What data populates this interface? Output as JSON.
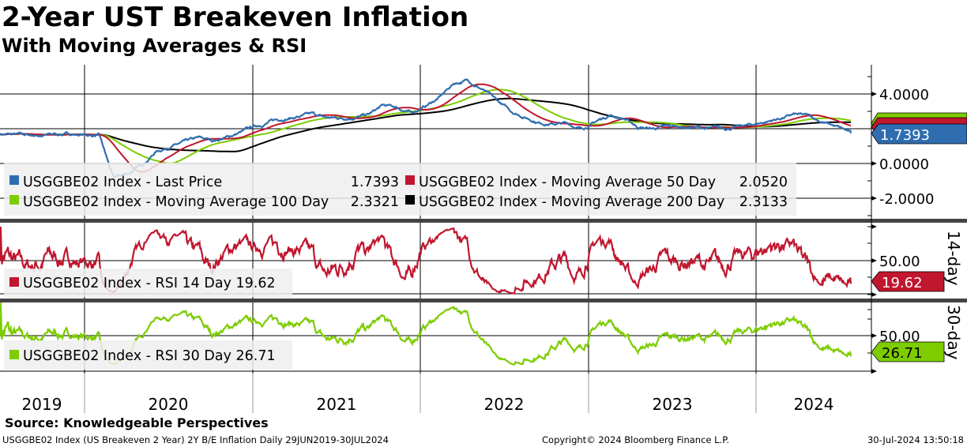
{
  "header": {
    "title": "2-Year UST Breakeven Inflation",
    "subtitle": "With Moving Averages & RSI"
  },
  "footer": {
    "source": "Source: Knowledgeable Perspectives",
    "description": "USGGBE02 Index (US Breakeven 2 Year) 2Y B/E Inflation  Daily 29JUN2019-30JUL2024",
    "copyright": "Copyright© 2024 Bloomberg Finance L.P.",
    "timestamp": "30-Jul-2024 13:50:18"
  },
  "chart_data": {
    "type": "line",
    "x_tick_labels": [
      "2019",
      "2020",
      "2021",
      "2022",
      "2023",
      "2024"
    ],
    "date_range": [
      "29JUN2019",
      "30JUL2024"
    ],
    "colors": {
      "last_price": "#2f6db0",
      "ma50": "#c0162e",
      "ma100": "#7dcc00",
      "ma200": "#000000",
      "rsi14": "#c0162e",
      "rsi30": "#7dcc00"
    },
    "price_panel": {
      "y_ticks": [
        "4.0000",
        "0.0000",
        "-2.0000"
      ],
      "ylim": [
        -3.2,
        5.6
      ],
      "monthly_last_price": [
        1.7,
        1.65,
        1.6,
        1.62,
        1.68,
        1.7,
        1.65,
        1.6,
        -0.9,
        -0.6,
        -0.1,
        0.7,
        1.0,
        1.2,
        1.4,
        1.3,
        1.5,
        1.8,
        2.1,
        2.4,
        2.6,
        2.7,
        2.8,
        2.6,
        2.6,
        2.7,
        2.8,
        3.3,
        3.2,
        2.9,
        3.3,
        3.8,
        4.6,
        4.8,
        4.3,
        3.6,
        3.0,
        2.7,
        2.4,
        2.3,
        2.3,
        2.0,
        2.4,
        2.8,
        2.6,
        2.1,
        2.0,
        2.1,
        2.1,
        2.1,
        2.0,
        2.0,
        2.1,
        2.2,
        2.4,
        2.6,
        2.8,
        2.7,
        2.4,
        2.1,
        1.74
      ],
      "series": [
        {
          "name": "USGGBE02 Index - Last Price",
          "value": "1.7393",
          "tag": "1.7393",
          "key": "last_price"
        },
        {
          "name": "USGGBE02 Index - Moving Average 50 Day",
          "value": "2.0520",
          "window": 50,
          "key": "ma50"
        },
        {
          "name": "USGGBE02 Index - Moving Average 100 Day",
          "value": "2.3321",
          "window": 100,
          "key": "ma100"
        },
        {
          "name": "USGGBE02 Index - Moving Average 200 Day",
          "value": "2.3133",
          "window": 200,
          "key": "ma200"
        }
      ]
    },
    "rsi14_panel": {
      "label": "14-day",
      "y_ticks": [
        "50.00"
      ],
      "ylim": [
        0,
        100
      ],
      "legend": "USGGBE02 Index - RSI 14 Day 19.62",
      "tag": "19.62",
      "period": 14
    },
    "rsi30_panel": {
      "label": "30-day",
      "y_ticks": [
        "50.00"
      ],
      "ylim": [
        0,
        100
      ],
      "legend": "USGGBE02 Index - RSI 30 Day 26.71",
      "tag": "26.71",
      "period": 30
    }
  }
}
